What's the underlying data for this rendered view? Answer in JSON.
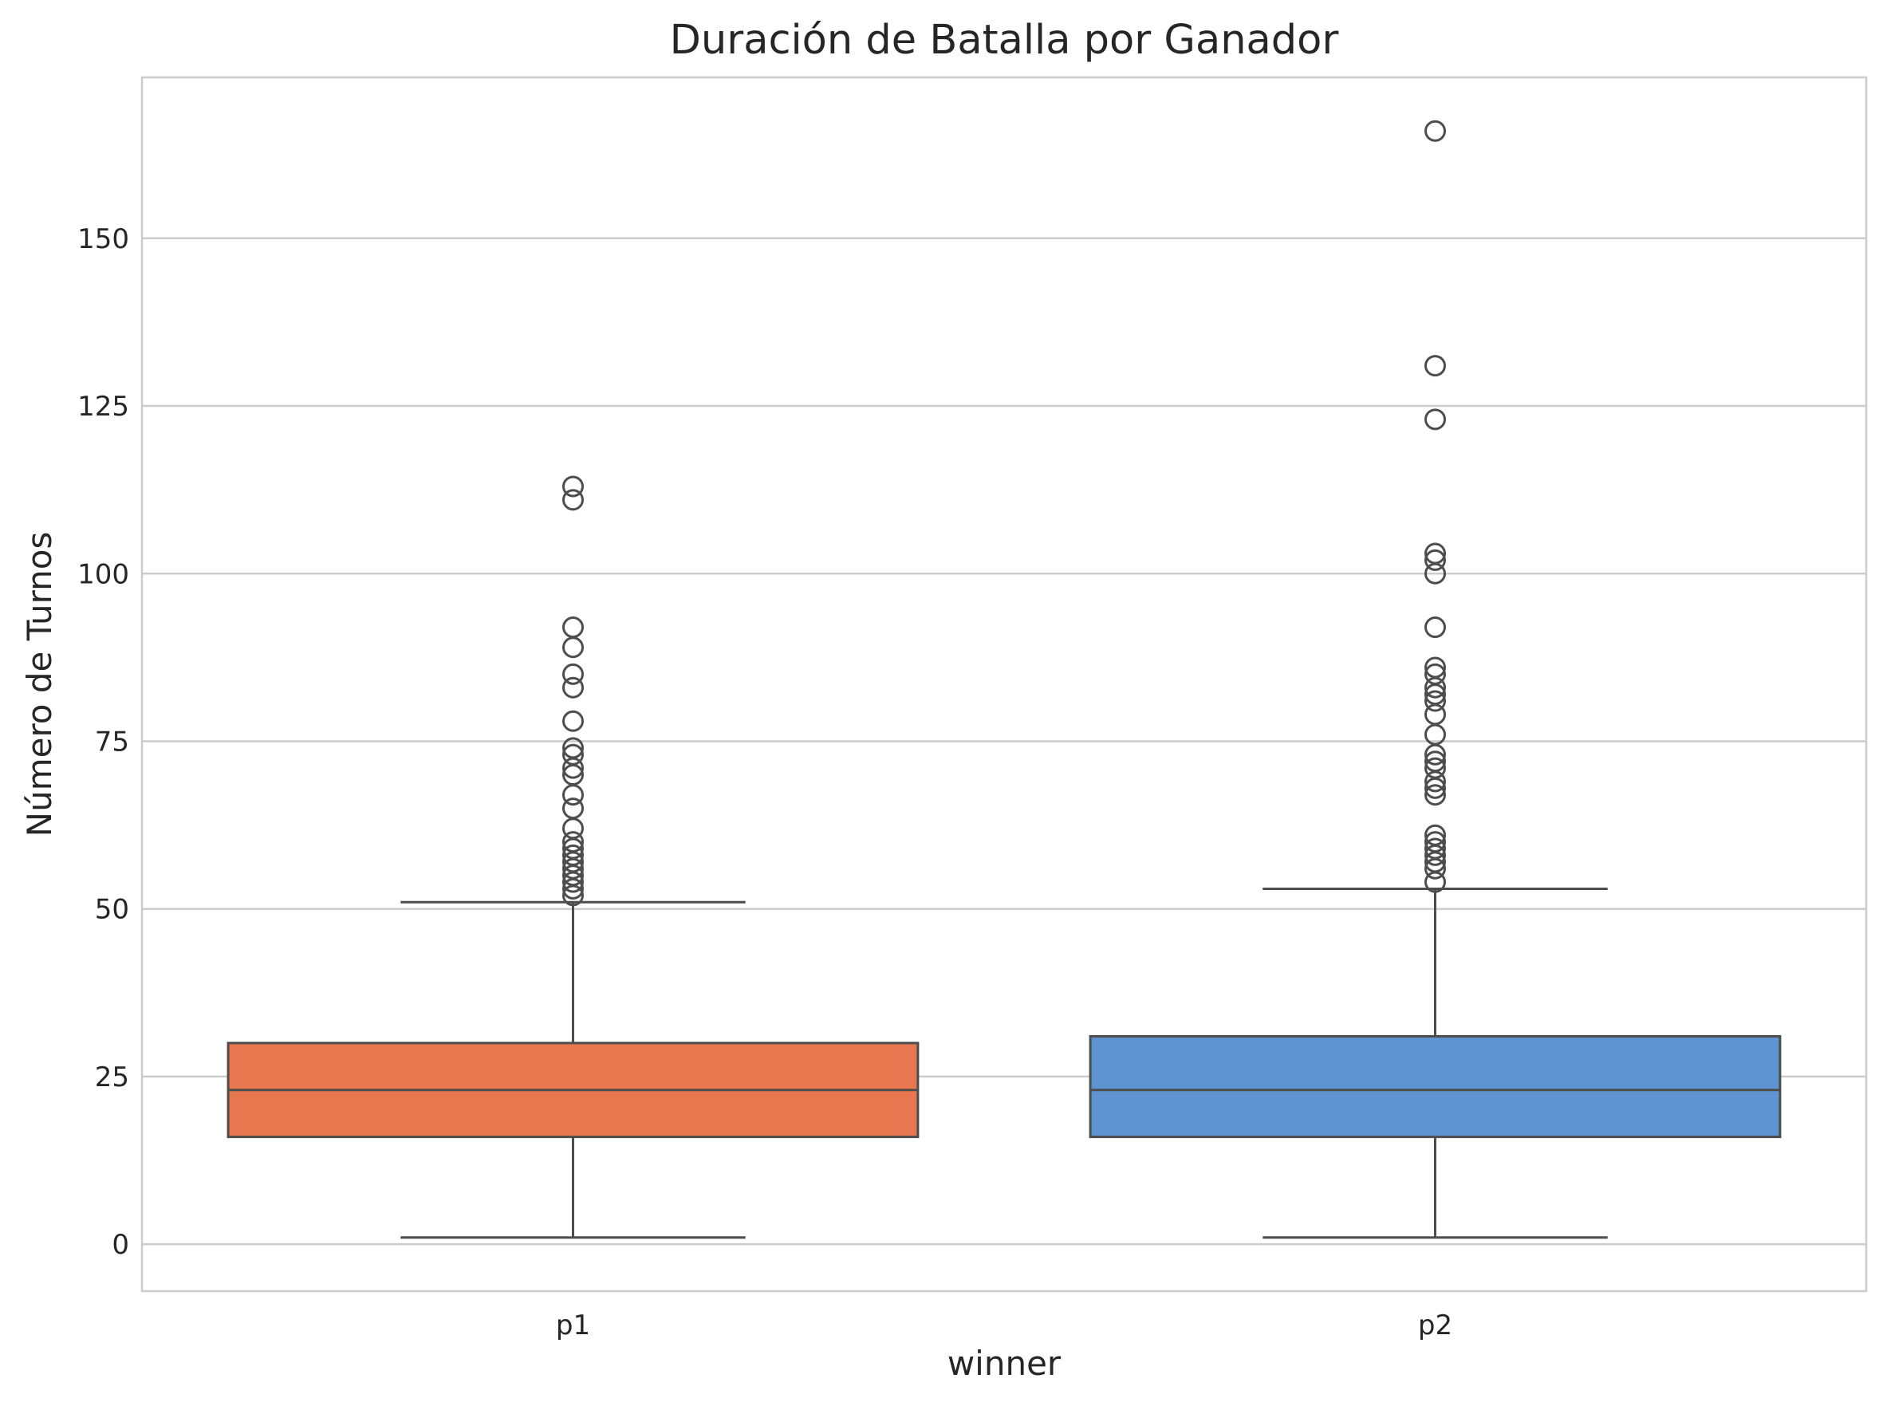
{
  "chart_data": {
    "type": "box",
    "title": "Duración de Batalla por Ganador",
    "xlabel": "winner",
    "ylabel": "Número de Turnos",
    "ylim": [
      -7,
      174
    ],
    "yticks": [
      0,
      25,
      50,
      75,
      100,
      125,
      150
    ],
    "grid": "horizontal",
    "categories": [
      "p1",
      "p2"
    ],
    "boxes": [
      {
        "category": "p1",
        "color": "#e8774f",
        "whisker_low": 1,
        "q1": 16,
        "median": 23,
        "q3": 30,
        "whisker_high": 51,
        "outliers": [
          52,
          53,
          54,
          55,
          56,
          57,
          58,
          59,
          60,
          62,
          65,
          67,
          70,
          71,
          73,
          74,
          78,
          83,
          85,
          89,
          92,
          111,
          113
        ]
      },
      {
        "category": "p2",
        "color": "#5e94d1",
        "whisker_low": 1,
        "q1": 16,
        "median": 23,
        "q3": 31,
        "whisker_high": 53,
        "outliers": [
          54,
          56,
          57,
          58,
          59,
          60,
          61,
          67,
          68,
          69,
          71,
          72,
          73,
          76,
          79,
          81,
          82,
          83,
          85,
          86,
          92,
          100,
          102,
          103,
          123,
          131,
          166
        ]
      }
    ]
  }
}
